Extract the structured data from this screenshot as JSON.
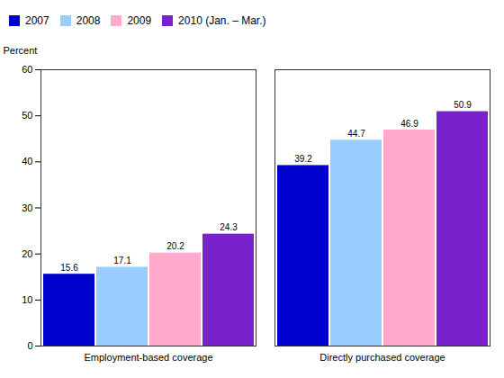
{
  "chart_data": {
    "type": "bar",
    "categories": [
      "Employment-based coverage",
      "Directly purchased coverage"
    ],
    "series": [
      {
        "name": "2007",
        "color": "#0000cc",
        "values": [
          15.6,
          39.2
        ]
      },
      {
        "name": "2008",
        "color": "#99ccff",
        "values": [
          17.1,
          44.7
        ]
      },
      {
        "name": "2009",
        "color": "#ffaacc",
        "values": [
          20.2,
          46.9
        ]
      },
      {
        "name": "2010 (Jan. – Mar.)",
        "color": "#7722cc",
        "values": [
          24.3,
          50.9
        ]
      }
    ],
    "ylabel": "Percent",
    "ylim": [
      0,
      60
    ],
    "yticks": [
      0,
      10,
      20,
      30,
      40,
      50,
      60
    ],
    "data_labels": true,
    "legend": "top-left",
    "grid": false
  }
}
